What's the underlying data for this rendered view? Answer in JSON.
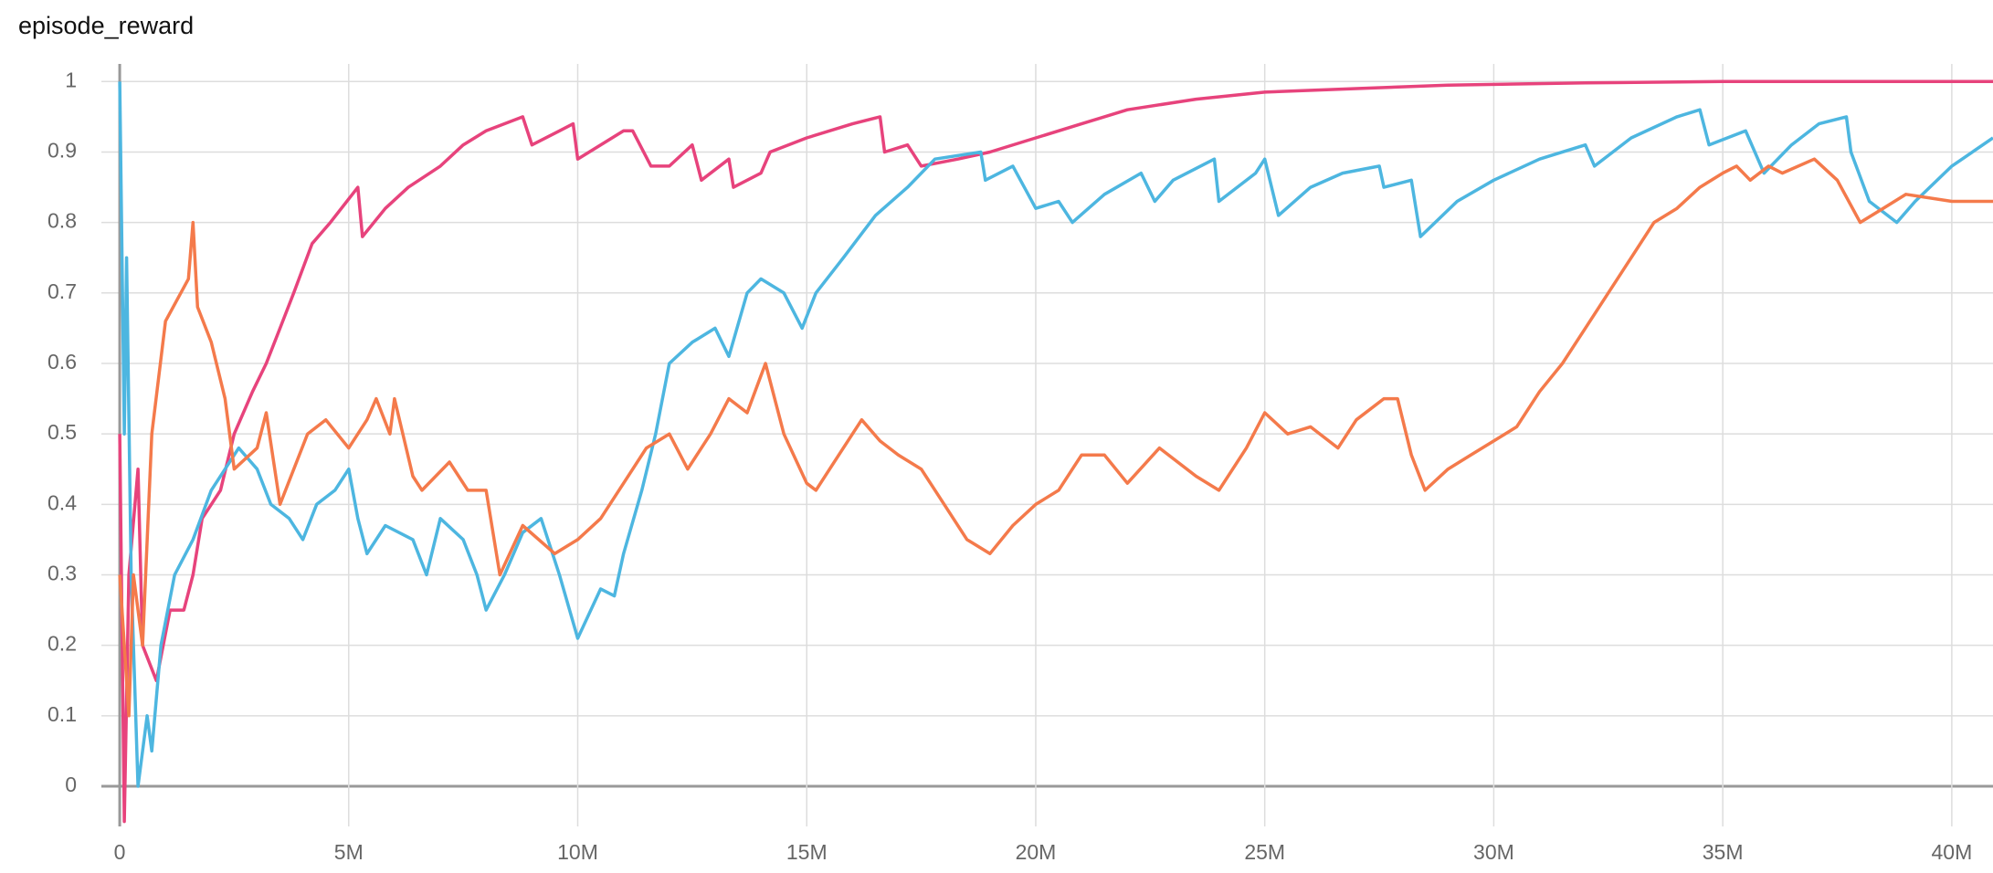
{
  "chart_data": {
    "type": "line",
    "title": "episode_reward",
    "xlim": [
      -400000,
      40900000
    ],
    "ylim": [
      -0.057,
      1.025
    ],
    "xticks": [
      0,
      {
        "value": 5000000.0,
        "label": "5M"
      },
      {
        "value": 10000000.0,
        "label": "10M"
      },
      {
        "value": 15000000.0,
        "label": "15M"
      },
      {
        "value": 20000000.0,
        "label": "20M"
      },
      {
        "value": 25000000.0,
        "label": "25M"
      },
      {
        "value": 30000000.0,
        "label": "30M"
      },
      {
        "value": 35000000.0,
        "label": "35M"
      },
      {
        "value": 40000000.0,
        "label": "40M"
      }
    ],
    "yticks": [
      0,
      0.1,
      0.2,
      0.3,
      0.4,
      0.5,
      0.6,
      0.7,
      0.8,
      0.9,
      1
    ],
    "grid": true,
    "series": [
      {
        "color": "#e7437c",
        "x": [
          0,
          100000.0,
          200000.0,
          400000.0,
          500000.0,
          800000.0,
          1100000.0,
          1400000.0,
          1600000.0,
          1800000.0,
          2200000.0,
          2500000.0,
          2900000.0,
          3200000.0,
          3500000.0,
          3800000.0,
          4200000.0,
          4600000.0,
          5200000.0,
          5300000.0,
          5800000.0,
          6300000.0,
          7000000.0,
          7500000.0,
          8000000.0,
          8800000.0,
          9000000.0,
          9600000.0,
          9900000.0,
          10000000.0,
          10500000.0,
          11000000.0,
          11200000.0,
          11600000.0,
          12000000.0,
          12500000.0,
          12700000.0,
          13300000.0,
          13400000.0,
          14000000.0,
          14200000.0,
          15000000.0,
          16000000.0,
          16600000.0,
          16700000.0,
          17200000.0,
          17500000.0,
          18300000.0,
          19000000.0,
          20000000.0,
          21000000.0,
          22000000.0,
          23500000.0,
          25000000.0,
          27000000.0,
          29000000.0,
          32000000.0,
          35000000.0,
          40900000.0
        ],
        "values": [
          0.5,
          -0.05,
          0.3,
          0.45,
          0.2,
          0.15,
          0.25,
          0.25,
          0.3,
          0.38,
          0.42,
          0.5,
          0.56,
          0.6,
          0.65,
          0.7,
          0.77,
          0.8,
          0.85,
          0.78,
          0.82,
          0.85,
          0.88,
          0.91,
          0.93,
          0.95,
          0.91,
          0.93,
          0.94,
          0.89,
          0.91,
          0.93,
          0.93,
          0.88,
          0.88,
          0.91,
          0.86,
          0.89,
          0.85,
          0.87,
          0.9,
          0.92,
          0.94,
          0.95,
          0.9,
          0.91,
          0.88,
          0.89,
          0.9,
          0.92,
          0.94,
          0.96,
          0.975,
          0.985,
          0.99,
          0.995,
          0.998,
          1,
          1
        ]
      },
      {
        "color": "#4db6e0",
        "x": [
          0,
          100000.0,
          150000.0,
          250000.0,
          400000.0,
          600000.0,
          700000.0,
          900000.0,
          1200000.0,
          1600000.0,
          2000000.0,
          2300000.0,
          2600000.0,
          3000000.0,
          3300000.0,
          3700000.0,
          4000000.0,
          4300000.0,
          4700000.0,
          5000000.0,
          5200000.0,
          5400000.0,
          5800000.0,
          6400000.0,
          6700000.0,
          7000000.0,
          7500000.0,
          7800000.0,
          8000000.0,
          8400000.0,
          8800000.0,
          9200000.0,
          9600000.0,
          10000000.0,
          10500000.0,
          10800000.0,
          11000000.0,
          11400000.0,
          11700000.0,
          12000000.0,
          12500000.0,
          13000000.0,
          13300000.0,
          13700000.0,
          14000000.0,
          14500000.0,
          14900000.0,
          15200000.0,
          15800000.0,
          16500000.0,
          17200000.0,
          17800000.0,
          18800000.0,
          18900000.0,
          19500000.0,
          20000000.0,
          20500000.0,
          20800000.0,
          21500000.0,
          22300000.0,
          22600000.0,
          23000000.0,
          23900000.0,
          24000000.0,
          24800000.0,
          25000000.0,
          25300000.0,
          26000000.0,
          26700000.0,
          27500000.0,
          27600000.0,
          28200000.0,
          28400000.0,
          29200000.0,
          30000000.0,
          31000000.0,
          32000000.0,
          32200000.0,
          33000000.0,
          34000000.0,
          34500000.0,
          34700000.0,
          35500000.0,
          35900000.0,
          36500000.0,
          37100000.0,
          37700000.0,
          37800000.0,
          38200000.0,
          38800000.0,
          39200000.0,
          40000000.0,
          40900000.0
        ],
        "values": [
          1,
          0.5,
          0.75,
          0.3,
          0,
          0.1,
          0.05,
          0.2,
          0.3,
          0.35,
          0.42,
          0.45,
          0.48,
          0.45,
          0.4,
          0.38,
          0.35,
          0.4,
          0.42,
          0.45,
          0.38,
          0.33,
          0.37,
          0.35,
          0.3,
          0.38,
          0.35,
          0.3,
          0.25,
          0.3,
          0.36,
          0.38,
          0.3,
          0.21,
          0.28,
          0.27,
          0.33,
          0.42,
          0.5,
          0.6,
          0.63,
          0.65,
          0.61,
          0.7,
          0.72,
          0.7,
          0.65,
          0.7,
          0.75,
          0.81,
          0.85,
          0.89,
          0.9,
          0.86,
          0.88,
          0.82,
          0.83,
          0.8,
          0.84,
          0.87,
          0.83,
          0.86,
          0.89,
          0.83,
          0.87,
          0.89,
          0.81,
          0.85,
          0.87,
          0.88,
          0.85,
          0.86,
          0.78,
          0.83,
          0.86,
          0.89,
          0.91,
          0.88,
          0.92,
          0.95,
          0.96,
          0.91,
          0.93,
          0.87,
          0.91,
          0.94,
          0.95,
          0.9,
          0.83,
          0.8,
          0.83,
          0.88,
          0.92
        ]
      },
      {
        "color": "#f47a4b",
        "x": [
          0,
          200000.0,
          300000.0,
          500000.0,
          700000.0,
          1000000.0,
          1500000.0,
          1600000.0,
          1700000.0,
          2000000.0,
          2300000.0,
          2500000.0,
          3000000.0,
          3200000.0,
          3500000.0,
          4100000.0,
          4500000.0,
          5000000.0,
          5400000.0,
          5600000.0,
          5900000.0,
          6000000.0,
          6400000.0,
          6600000.0,
          7200000.0,
          7600000.0,
          8000000.0,
          8300000.0,
          8800000.0,
          9500000.0,
          10000000.0,
          10500000.0,
          11000000.0,
          11500000.0,
          12000000.0,
          12400000.0,
          12900000.0,
          13300000.0,
          13700000.0,
          14100000.0,
          14500000.0,
          15000000.0,
          15200000.0,
          15700000.0,
          16200000.0,
          16600000.0,
          17000000.0,
          17500000.0,
          18000000.0,
          18500000.0,
          19000000.0,
          19500000.0,
          20000000.0,
          20500000.0,
          21000000.0,
          21500000.0,
          22000000.0,
          22700000.0,
          23500000.0,
          24000000.0,
          24600000.0,
          25000000.0,
          25500000.0,
          26000000.0,
          26600000.0,
          27000000.0,
          27600000.0,
          27900000.0,
          28200000.0,
          28500000.0,
          29000000.0,
          29500000.0,
          30000000.0,
          30500000.0,
          31000000.0,
          31500000.0,
          32000000.0,
          32500000.0,
          33000000.0,
          33500000.0,
          34000000.0,
          34500000.0,
          35000000.0,
          35300000.0,
          35600000.0,
          36000000.0,
          36300000.0,
          37000000.0,
          37500000.0,
          38000000.0,
          38500000.0,
          39000000.0,
          40000000.0,
          40900000.0
        ],
        "values": [
          0.3,
          0.1,
          0.3,
          0.2,
          0.5,
          0.66,
          0.72,
          0.8,
          0.68,
          0.63,
          0.55,
          0.45,
          0.48,
          0.53,
          0.4,
          0.5,
          0.52,
          0.48,
          0.52,
          0.55,
          0.5,
          0.55,
          0.44,
          0.42,
          0.46,
          0.42,
          0.42,
          0.3,
          0.37,
          0.33,
          0.35,
          0.38,
          0.43,
          0.48,
          0.5,
          0.45,
          0.5,
          0.55,
          0.53,
          0.6,
          0.5,
          0.43,
          0.42,
          0.47,
          0.52,
          0.49,
          0.47,
          0.45,
          0.4,
          0.35,
          0.33,
          0.37,
          0.4,
          0.42,
          0.47,
          0.47,
          0.43,
          0.48,
          0.44,
          0.42,
          0.48,
          0.53,
          0.5,
          0.51,
          0.48,
          0.52,
          0.55,
          0.55,
          0.47,
          0.42,
          0.45,
          0.47,
          0.49,
          0.51,
          0.56,
          0.6,
          0.65,
          0.7,
          0.75,
          0.8,
          0.82,
          0.85,
          0.87,
          0.88,
          0.86,
          0.88,
          0.87,
          0.89,
          0.86,
          0.8,
          0.82,
          0.84,
          0.83,
          0.83
        ]
      }
    ]
  }
}
